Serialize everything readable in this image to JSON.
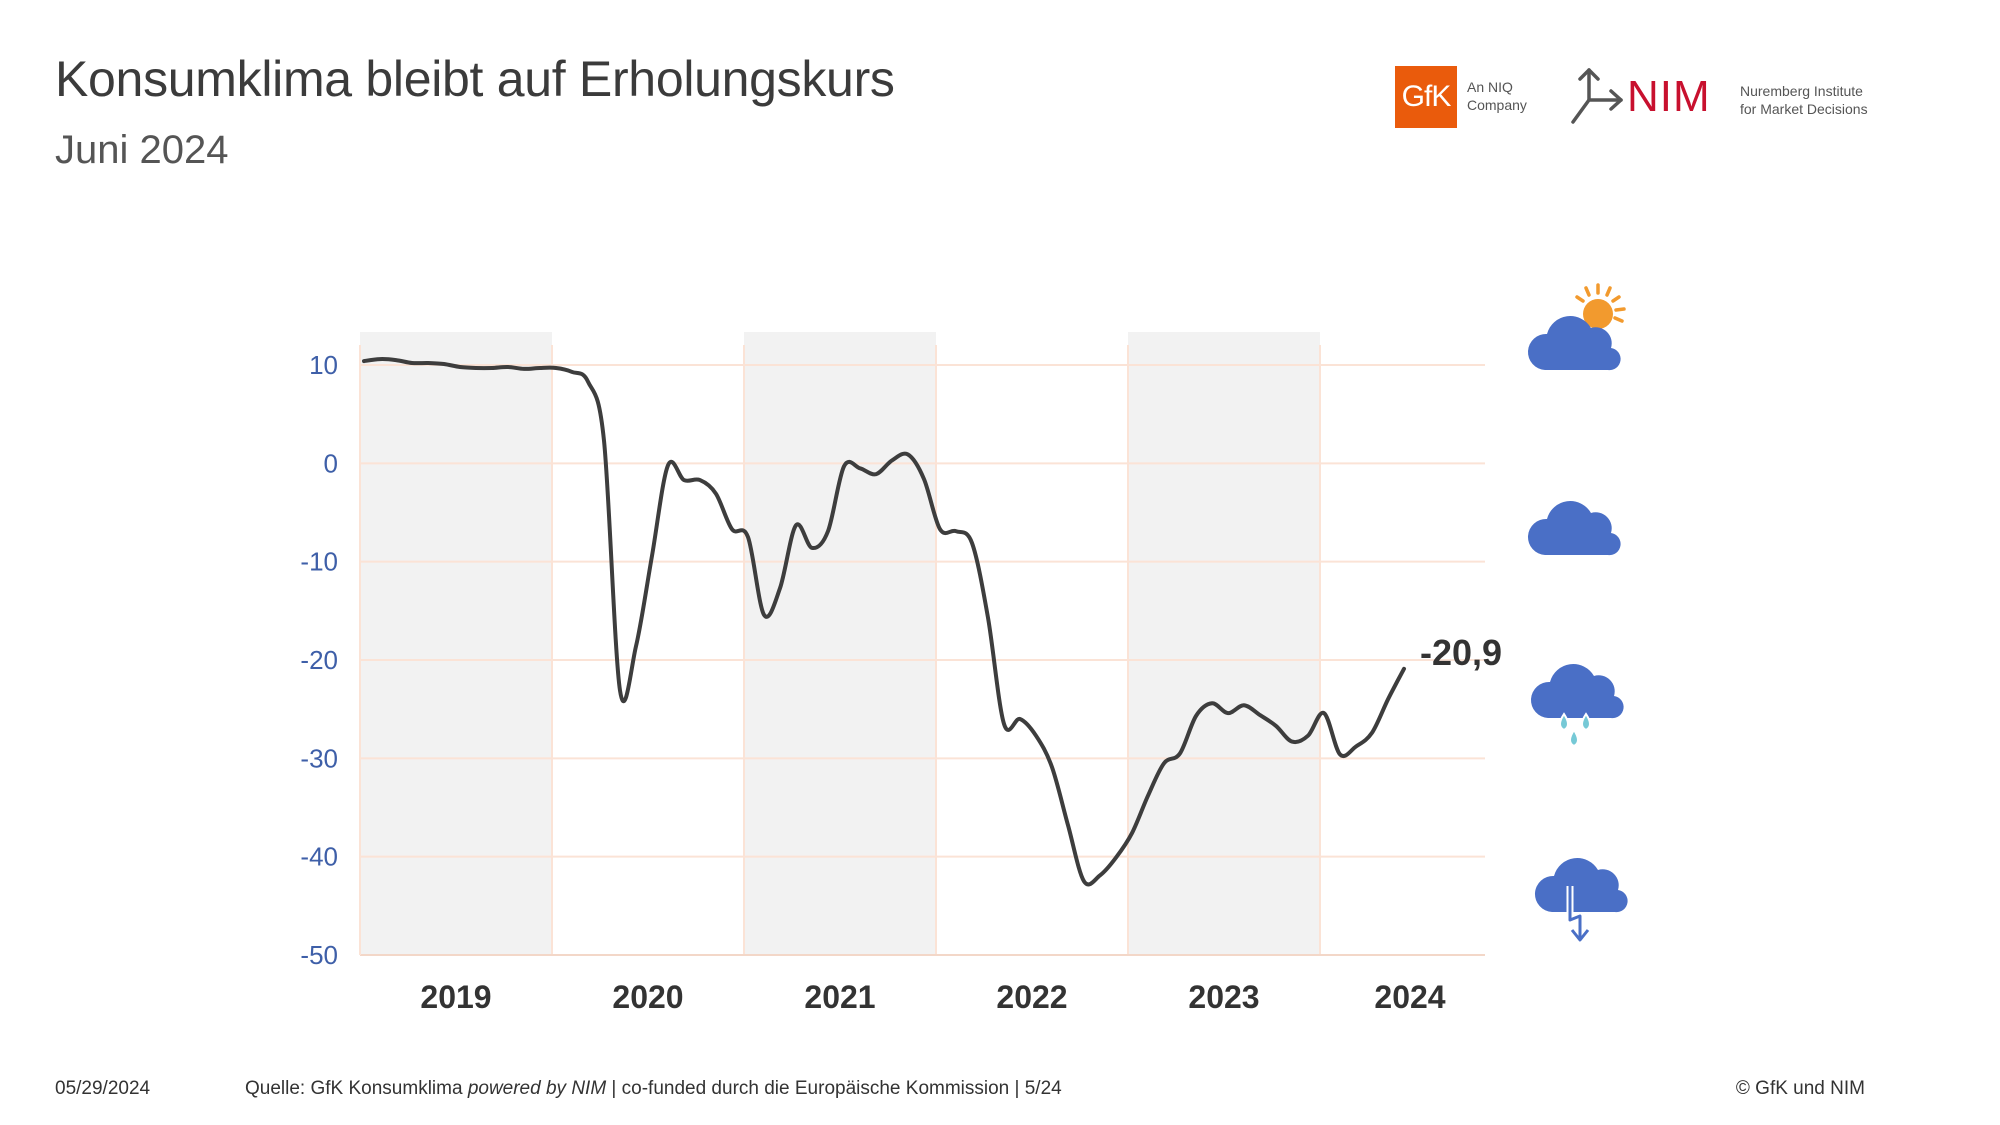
{
  "header": {
    "title": "Konsumklima bleibt auf Erholungskurs",
    "subtitle": "Juni 2024"
  },
  "logos": {
    "gfk_mark": "GfK",
    "gfk_tagline_1": "An NIQ",
    "gfk_tagline_2": "Company",
    "nim_mark": "NIM",
    "nim_tagline_1": "Nuremberg Institute",
    "nim_tagline_2": "for Market Decisions",
    "gfk_color": "#ea5b0c",
    "nim_color": "#c8102e"
  },
  "footer": {
    "date": "05/29/2024",
    "source_prefix": "Quelle: GfK Konsumklima ",
    "source_italic": "powered by NIM",
    "source_suffix": " | co-funded durch die Europäische Kommission | 5/24",
    "copyright": "© GfK und NIM"
  },
  "weather_icons": [
    "sun-cloud-icon",
    "cloud-icon",
    "rain-cloud-icon",
    "storm-cloud-icon"
  ],
  "chart_data": {
    "type": "line",
    "ylim": [
      -50,
      10
    ],
    "yticks": [
      10,
      0,
      -10,
      -20,
      -30,
      -40,
      -50
    ],
    "year_labels": [
      "2019",
      "2020",
      "2021",
      "2022",
      "2023",
      "2024"
    ],
    "shaded_years": [
      "2019",
      "2021",
      "2023"
    ],
    "grid": true,
    "line_color": "#3d3d3d",
    "axis_color": "#3e5fa8",
    "last_value_label": "-20,9",
    "series": [
      {
        "x": [
          "2019-01",
          "2019-02",
          "2019-03",
          "2019-04",
          "2019-05",
          "2019-06",
          "2019-07",
          "2019-08",
          "2019-09",
          "2019-10",
          "2019-11",
          "2019-12",
          "2020-01",
          "2020-02",
          "2020-03",
          "2020-04",
          "2020-05",
          "2020-06",
          "2020-07",
          "2020-08",
          "2020-09",
          "2020-10",
          "2020-11",
          "2020-12",
          "2021-01",
          "2021-02",
          "2021-03",
          "2021-04",
          "2021-05",
          "2021-06",
          "2021-07",
          "2021-08",
          "2021-09",
          "2021-10",
          "2021-11",
          "2021-12",
          "2022-01",
          "2022-02",
          "2022-03",
          "2022-04",
          "2022-05",
          "2022-06",
          "2022-07",
          "2022-08",
          "2022-09",
          "2022-10",
          "2022-11",
          "2022-12",
          "2023-01",
          "2023-02",
          "2023-03",
          "2023-04",
          "2023-05",
          "2023-06",
          "2023-07",
          "2023-08",
          "2023-09",
          "2023-10",
          "2023-11",
          "2023-12",
          "2024-01",
          "2024-02",
          "2024-03",
          "2024-04",
          "2024-05",
          "2024-06"
        ],
        "y": [
          10.4,
          10.6,
          10.5,
          10.2,
          10.2,
          10.1,
          9.8,
          9.7,
          9.7,
          9.8,
          9.6,
          9.7,
          9.7,
          9.3,
          8.3,
          2.3,
          -23.1,
          -18.6,
          -9.4,
          -0.2,
          -1.7,
          -1.7,
          -3.1,
          -6.7,
          -7.5,
          -15.4,
          -12.7,
          -6.3,
          -8.6,
          -6.9,
          -0.3,
          -0.5,
          -1.1,
          0.3,
          0.9,
          -1.6,
          -6.7,
          -6.9,
          -8.1,
          -15.7,
          -26.5,
          -26.0,
          -27.7,
          -30.9,
          -36.8,
          -42.5,
          -41.9,
          -40.1,
          -37.6,
          -33.8,
          -30.5,
          -29.5,
          -25.7,
          -24.4,
          -25.4,
          -24.6,
          -25.6,
          -26.7,
          -28.3,
          -27.7,
          -25.4,
          -29.6,
          -28.8,
          -27.4,
          -24.0,
          -20.9
        ]
      }
    ]
  }
}
